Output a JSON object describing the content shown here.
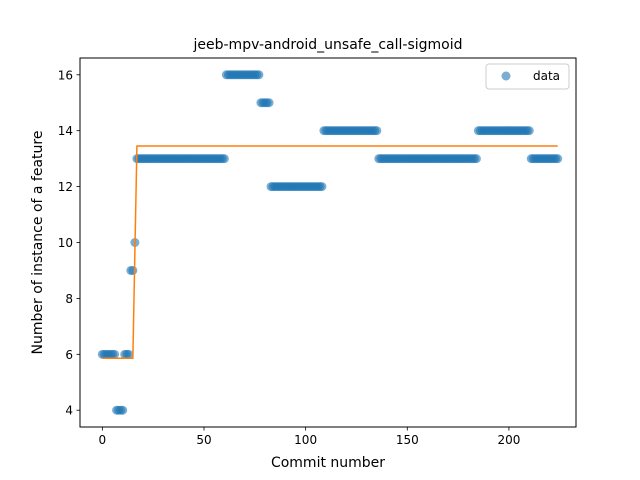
{
  "chart_data": {
    "type": "scatter",
    "title": "jeeb-mpv-android_unsafe_call-sigmoid",
    "xlabel": "Commit number",
    "ylabel": "Number of instance of a feature",
    "xlim": [
      -11,
      233
    ],
    "ylim": [
      3.4,
      16.6
    ],
    "xticks": [
      0,
      50,
      100,
      150,
      200
    ],
    "yticks": [
      4,
      6,
      8,
      10,
      12,
      14,
      16
    ],
    "grid": false,
    "legend": {
      "placement": "top-right",
      "entries": [
        "data"
      ]
    },
    "colors": {
      "data": "#1f77b4",
      "fit": "#ff7f0e"
    },
    "series": [
      {
        "name": "data",
        "kind": "scatter",
        "segments": [
          {
            "x_start": 0,
            "x_end": 6,
            "y": 6
          },
          {
            "x_start": 7,
            "x_end": 10,
            "y": 4
          },
          {
            "x_start": 11,
            "x_end": 13,
            "y": 6
          },
          {
            "x_start": 14,
            "x_end": 15,
            "y": 9
          },
          {
            "x_start": 16,
            "x_end": 16,
            "y": 10
          },
          {
            "x_start": 17,
            "x_end": 60,
            "y": 13
          },
          {
            "x_start": 61,
            "x_end": 77,
            "y": 16
          },
          {
            "x_start": 78,
            "x_end": 82,
            "y": 15
          },
          {
            "x_start": 83,
            "x_end": 108,
            "y": 12
          },
          {
            "x_start": 109,
            "x_end": 135,
            "y": 14
          },
          {
            "x_start": 136,
            "x_end": 184,
            "y": 13
          },
          {
            "x_start": 185,
            "x_end": 210,
            "y": 14
          },
          {
            "x_start": 211,
            "x_end": 224,
            "y": 13
          }
        ]
      },
      {
        "kind": "line",
        "points": [
          [
            0,
            5.86
          ],
          [
            15,
            5.86
          ],
          [
            17,
            13.45
          ],
          [
            224,
            13.45
          ]
        ]
      }
    ]
  }
}
